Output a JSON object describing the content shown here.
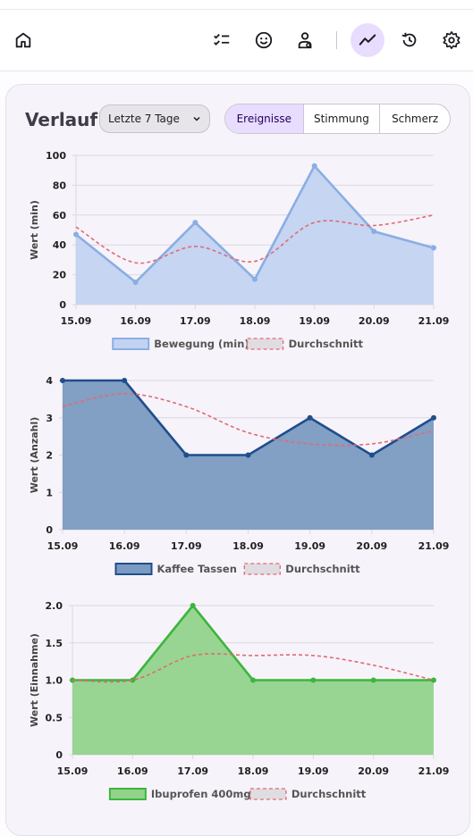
{
  "nav": {
    "home": "home-icon",
    "tasks": "checklist-icon",
    "mood": "smiley-icon",
    "profile": "user-settings-icon",
    "trend": "trend-icon",
    "history": "history-icon",
    "settings": "gear-icon",
    "active_color": "#e8ddff"
  },
  "card": {
    "title": "Verlauf",
    "range_value": "Letzte 7 Tage",
    "tabs": [
      "Ereignisse",
      "Stimmung",
      "Schmerz"
    ],
    "active_tab": "Ereignisse"
  },
  "chart_data": [
    {
      "type": "area",
      "categories": [
        "15.09",
        "16.09",
        "17.09",
        "18.09",
        "19.09",
        "20.09",
        "21.09"
      ],
      "series": [
        {
          "name": "Bewegung (min)",
          "values": [
            47,
            15,
            55,
            17,
            93,
            49,
            38
          ],
          "color": "#8aaee3",
          "fill": "#c2d3f1"
        },
        {
          "name": "Durchschnitt",
          "values": [
            52,
            28,
            39,
            29,
            55,
            53,
            60
          ],
          "color": "#e06b72",
          "dashed": true
        }
      ],
      "ylabel": "Wert (min)",
      "ylim": [
        0,
        100
      ],
      "yticks": [
        0,
        20,
        40,
        60,
        80,
        100
      ],
      "legend": "bottom"
    },
    {
      "type": "area",
      "categories": [
        "15.09",
        "16.09",
        "17.09",
        "18.09",
        "19.09",
        "20.09",
        "21.09"
      ],
      "series": [
        {
          "name": "Kaffee Tassen",
          "values": [
            4,
            4,
            2,
            2,
            3,
            2,
            3
          ],
          "color": "#1e4e8c",
          "fill": "#7b9ac1"
        },
        {
          "name": "Durchschnitt",
          "values": [
            3.3,
            3.65,
            3.3,
            2.6,
            2.3,
            2.3,
            2.65
          ],
          "color": "#e06b72",
          "dashed": true
        }
      ],
      "ylabel": "Wert (Anzahl)",
      "ylim": [
        0,
        4
      ],
      "yticks": [
        0,
        1,
        2,
        3,
        4
      ],
      "legend": "bottom"
    },
    {
      "type": "area",
      "categories": [
        "15.09",
        "16.09",
        "17.09",
        "18.09",
        "19.09",
        "20.09",
        "21.09"
      ],
      "series": [
        {
          "name": "Ibuprofen 400mg",
          "values": [
            1,
            1,
            2,
            1,
            1,
            1,
            1
          ],
          "color": "#3db53d",
          "fill": "#92d38c"
        },
        {
          "name": "Durchschnitt",
          "values": [
            1.0,
            1.0,
            1.33,
            1.33,
            1.33,
            1.2,
            1.0
          ],
          "color": "#e06b72",
          "dashed": true
        }
      ],
      "ylabel": "Wert (Einnahme)",
      "ylim": [
        0,
        2
      ],
      "yticks": [
        "0",
        "0.5",
        "1.0",
        "1.5",
        "2.0"
      ],
      "legend": "bottom"
    }
  ]
}
